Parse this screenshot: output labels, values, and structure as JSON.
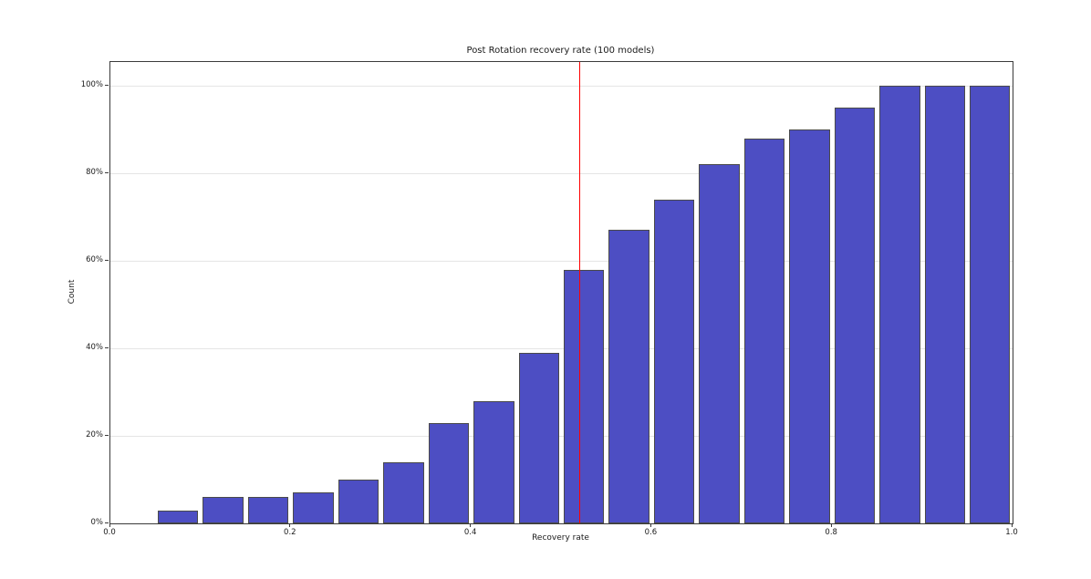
{
  "chart_data": {
    "type": "bar",
    "subtype": "cumulative-histogram",
    "title": "Post Rotation recovery rate (100 models)",
    "xlabel": "Recovery rate",
    "ylabel": "Count",
    "xlim": [
      0.0,
      1.0
    ],
    "ylim_pct": [
      0,
      105.4
    ],
    "grid": true,
    "bin_width": 0.05,
    "bin_starts": [
      0.05,
      0.1,
      0.15,
      0.2,
      0.25,
      0.3,
      0.35,
      0.4,
      0.45,
      0.5,
      0.55,
      0.6,
      0.65,
      0.7,
      0.75,
      0.8,
      0.85,
      0.9,
      0.95
    ],
    "values_pct": [
      3,
      6,
      6,
      7,
      10,
      14,
      23,
      28,
      39,
      58,
      67,
      74,
      82,
      88,
      90,
      95,
      100,
      100,
      100
    ],
    "x_ticks": [
      {
        "value": 0.0,
        "label": "0.0"
      },
      {
        "value": 0.2,
        "label": "0.2"
      },
      {
        "value": 0.4,
        "label": "0.4"
      },
      {
        "value": 0.6,
        "label": "0.6"
      },
      {
        "value": 0.8,
        "label": "0.8"
      },
      {
        "value": 1.0,
        "label": "1.0"
      }
    ],
    "y_ticks": [
      {
        "value": 0,
        "label": "0%"
      },
      {
        "value": 20,
        "label": "20%"
      },
      {
        "value": 40,
        "label": "40%"
      },
      {
        "value": 60,
        "label": "60%"
      },
      {
        "value": 80,
        "label": "80%"
      },
      {
        "value": 100,
        "label": "100%"
      }
    ],
    "vline": {
      "x": 0.52,
      "color": "#ff0000"
    },
    "colors": {
      "bar_fill": "#4d4ec3",
      "bar_edge": "#4a4a4a",
      "grid": "#e5e5e5",
      "spine": "#3a3a3a",
      "text": "#1a1a1a",
      "background": "#ffffff"
    }
  }
}
